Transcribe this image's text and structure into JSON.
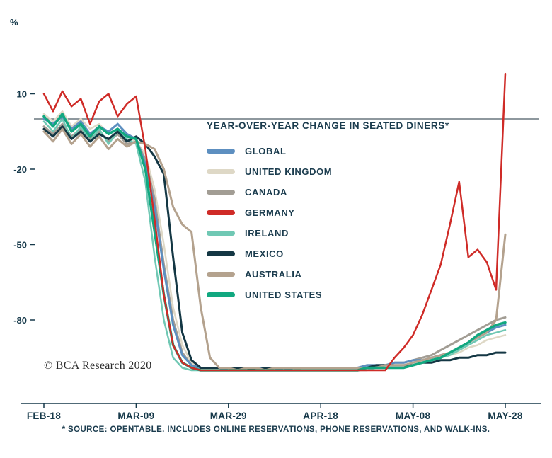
{
  "page": {
    "copyright": "© BCΑ Research 2020",
    "footnote": "* SOURCE: OPENTABLE. INCLUDES ONLINE RESERVATIONS, PHONE RESERVATIONS, AND WALK-INS."
  },
  "chart_data": {
    "type": "line",
    "title": "YEAR-OVER-YEAR  CHANGE IN SEATED DINERS*",
    "ylabel": "%",
    "x_tick_labels": [
      "FEB-18",
      "MAR-09",
      "MAR-29",
      "APR-18",
      "MAY-08",
      "MAY-28"
    ],
    "x_tick_days": [
      0,
      20,
      40,
      60,
      80,
      100
    ],
    "y_ticks": [
      10,
      -20,
      -50,
      -80
    ],
    "ylim": [
      -106,
      22
    ],
    "zero_line": true,
    "grid": false,
    "legend_position": "inside-top-center",
    "x_days": [
      0,
      2,
      4,
      6,
      8,
      10,
      12,
      14,
      16,
      18,
      20,
      22,
      24,
      26,
      28,
      30,
      32,
      34,
      36,
      38,
      40,
      42,
      44,
      46,
      48,
      50,
      52,
      54,
      56,
      58,
      60,
      62,
      64,
      66,
      68,
      70,
      72,
      74,
      76,
      78,
      80,
      82,
      84,
      86,
      88,
      90,
      92,
      94,
      96,
      98,
      100
    ],
    "series": [
      {
        "name": "GLOBAL",
        "color": "#5d8fc0",
        "width": 3,
        "values": [
          0,
          -2,
          1,
          -4,
          -1,
          -6,
          -3,
          -5,
          -2,
          -6,
          -8,
          -18,
          -35,
          -60,
          -82,
          -94,
          -98,
          -99,
          -99,
          -99,
          -100,
          -99,
          -99,
          -99,
          -99,
          -99,
          -100,
          -99,
          -99,
          -99,
          -99,
          -99,
          -99,
          -99,
          -99,
          -98,
          -98,
          -98,
          -97,
          -97,
          -96,
          -96,
          -95,
          -94,
          -93,
          -91,
          -89,
          -87,
          -85,
          -83,
          -82
        ]
      },
      {
        "name": "UNITED KINGDOM",
        "color": "#ded8c6",
        "width": 2.5,
        "values": [
          2,
          -1,
          3,
          -3,
          0,
          -4,
          -2,
          -6,
          -4,
          -7,
          -9,
          -14,
          -28,
          -50,
          -75,
          -90,
          -97,
          -99,
          -99,
          -99,
          -99,
          -100,
          -99,
          -99,
          -99,
          -99,
          -99,
          -100,
          -99,
          -99,
          -99,
          -99,
          -99,
          -99,
          -99,
          -99,
          -99,
          -98,
          -98,
          -98,
          -98,
          -97,
          -96,
          -95,
          -94,
          -93,
          -91,
          -90,
          -88,
          -87,
          -86
        ]
      },
      {
        "name": "CANADA",
        "color": "#a29d94",
        "width": 3,
        "values": [
          -3,
          -6,
          -2,
          -7,
          -4,
          -8,
          -5,
          -9,
          -6,
          -10,
          -9,
          -16,
          -32,
          -58,
          -80,
          -93,
          -98,
          -99,
          -99,
          -99,
          -99,
          -99,
          -100,
          -99,
          -99,
          -99,
          -99,
          -99,
          -99,
          -99,
          -99,
          -99,
          -99,
          -99,
          -99,
          -98,
          -98,
          -98,
          -97,
          -97,
          -96,
          -95,
          -94,
          -92,
          -90,
          -88,
          -86,
          -84,
          -82,
          -80,
          -79
        ]
      },
      {
        "name": "GERMANY",
        "color": "#cf2b27",
        "width": 2.5,
        "values": [
          10,
          3,
          11,
          5,
          8,
          -2,
          7,
          10,
          1,
          6,
          9,
          -12,
          -40,
          -70,
          -90,
          -97,
          -99,
          -100,
          -100,
          -100,
          -100,
          -100,
          -100,
          -100,
          -100,
          -100,
          -100,
          -100,
          -100,
          -100,
          -100,
          -100,
          -100,
          -100,
          -100,
          -100,
          -100,
          -100,
          -95,
          -91,
          -86,
          -78,
          -68,
          -58,
          -42,
          -25,
          -55,
          -52,
          -57,
          -68,
          18
        ]
      },
      {
        "name": "IRELAND",
        "color": "#70c8b4",
        "width": 2.5,
        "values": [
          -1,
          -5,
          0,
          -8,
          -3,
          -9,
          -4,
          -10,
          -5,
          -8,
          -10,
          -25,
          -55,
          -80,
          -95,
          -99,
          -100,
          -100,
          -100,
          -100,
          -100,
          -100,
          -100,
          -100,
          -100,
          -100,
          -100,
          -100,
          -100,
          -100,
          -100,
          -100,
          -100,
          -100,
          -100,
          -100,
          -99,
          -99,
          -99,
          -99,
          -98,
          -97,
          -96,
          -95,
          -94,
          -92,
          -90,
          -88,
          -86,
          -85,
          -84
        ]
      },
      {
        "name": "MEXICO",
        "color": "#143744",
        "width": 3,
        "values": [
          -4,
          -7,
          -3,
          -8,
          -5,
          -9,
          -6,
          -8,
          -5,
          -9,
          -7,
          -10,
          -15,
          -22,
          -55,
          -85,
          -96,
          -99,
          -99,
          -99,
          -99,
          -99,
          -99,
          -100,
          -99,
          -99,
          -99,
          -99,
          -99,
          -99,
          -99,
          -99,
          -99,
          -99,
          -99,
          -99,
          -98,
          -98,
          -98,
          -98,
          -98,
          -97,
          -97,
          -96,
          -96,
          -95,
          -95,
          -94,
          -94,
          -93,
          -93
        ]
      },
      {
        "name": "AUSTRALIA",
        "color": "#b4a28e",
        "width": 3,
        "values": [
          -5,
          -9,
          -4,
          -10,
          -6,
          -11,
          -7,
          -12,
          -8,
          -11,
          -9,
          -10,
          -12,
          -20,
          -35,
          -42,
          -45,
          -75,
          -95,
          -99,
          -99,
          -100,
          -99,
          -99,
          -100,
          -99,
          -99,
          -99,
          -99,
          -99,
          -99,
          -99,
          -99,
          -99,
          -99,
          -99,
          -99,
          -98,
          -98,
          -98,
          -97,
          -96,
          -95,
          -94,
          -93,
          -91,
          -89,
          -87,
          -85,
          -80,
          -46
        ]
      },
      {
        "name": "UNITED STATES",
        "color": "#11a880",
        "width": 3.5,
        "values": [
          1,
          -3,
          2,
          -5,
          -2,
          -7,
          -3,
          -6,
          -4,
          -7,
          -8,
          -20,
          -45,
          -70,
          -90,
          -97,
          -99,
          -100,
          -100,
          -100,
          -100,
          -100,
          -100,
          -100,
          -100,
          -100,
          -100,
          -100,
          -100,
          -100,
          -100,
          -100,
          -100,
          -100,
          -100,
          -99,
          -99,
          -99,
          -99,
          -99,
          -98,
          -97,
          -96,
          -95,
          -93,
          -91,
          -89,
          -86,
          -84,
          -82,
          -81
        ]
      }
    ]
  }
}
